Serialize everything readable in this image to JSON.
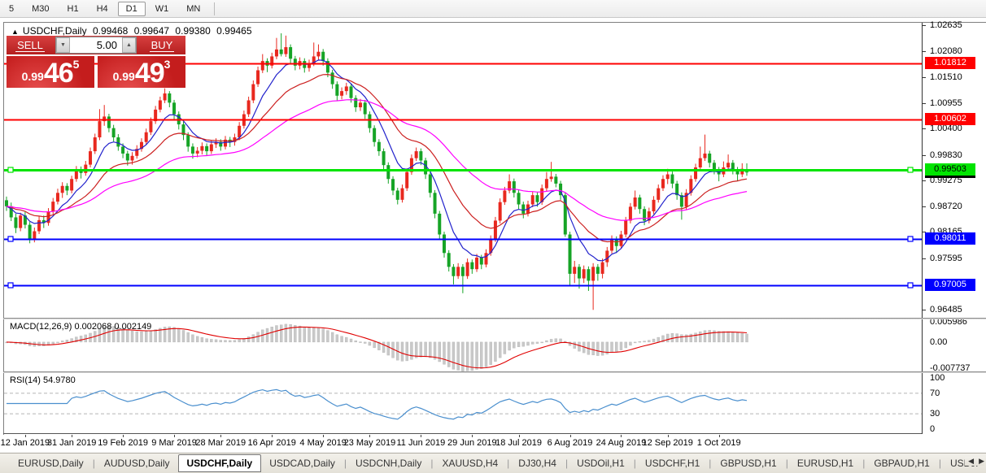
{
  "toolbar": {
    "timeframes": [
      "5",
      "M30",
      "H1",
      "H4",
      "D1",
      "W1",
      "MN"
    ],
    "active": "D1"
  },
  "chart_header": {
    "symbol": "USDCHF,Daily",
    "open": "0.99468",
    "high": "0.99647",
    "low": "0.99380",
    "close": "0.99465"
  },
  "trade_panel": {
    "sell_label": "SELL",
    "buy_label": "BUY",
    "volume": "5.00",
    "bid": {
      "prefix": "0.99",
      "big": "46",
      "sup": "5"
    },
    "ask": {
      "prefix": "0.99",
      "big": "49",
      "sup": "3"
    }
  },
  "chart_data": {
    "type": "candlestick",
    "symbol": "USDCHF",
    "timeframe": "Daily",
    "title": "USDCHF,Daily 0.99468 0.99647 0.99380 0.99465",
    "ylim": [
      0.96485,
      1.02635
    ],
    "price_axis_ticks": [
      {
        "v": 1.02635,
        "label": "1.02635"
      },
      {
        "v": 1.0208,
        "label": "1.02080"
      },
      {
        "v": 1.0151,
        "label": "1.01510"
      },
      {
        "v": 1.00955,
        "label": "1.00955"
      },
      {
        "v": 1.004,
        "label": "1.00400"
      },
      {
        "v": 0.9983,
        "label": "0.99830"
      },
      {
        "v": 0.99275,
        "label": "0.99275"
      },
      {
        "v": 0.9872,
        "label": "0.98720"
      },
      {
        "v": 0.98165,
        "label": "0.98165"
      },
      {
        "v": 0.97595,
        "label": "0.97595"
      },
      {
        "v": 0.96485,
        "label": "0.96485"
      }
    ],
    "date_ticks": {
      "labels": [
        "12 Jan 2019",
        "31 Jan 2019",
        "19 Feb 2019",
        "9 Mar 2019",
        "28 Mar 2019",
        "16 Apr 2019",
        "4 May 2019",
        "23 May 2019",
        "11 Jun 2019",
        "29 Jun 2019",
        "18 Jul 2019",
        "6 Aug 2019",
        "24 Aug 2019",
        "12 Sep 2019",
        "1 Oct 2019"
      ],
      "candle_indices": [
        4,
        14,
        25,
        36,
        46,
        57,
        68,
        78,
        89,
        100,
        110,
        121,
        132,
        142,
        153
      ]
    },
    "bull_color": "#e8281e",
    "bear_color": "#16a426",
    "candles": [
      [
        0.9885,
        0.9893,
        0.9862,
        0.9872
      ],
      [
        0.9872,
        0.988,
        0.984,
        0.9848
      ],
      [
        0.9848,
        0.9856,
        0.9814,
        0.9825
      ],
      [
        0.9825,
        0.9858,
        0.9818,
        0.9852
      ],
      [
        0.9852,
        0.986,
        0.9824,
        0.9832
      ],
      [
        0.9832,
        0.9838,
        0.9792,
        0.98
      ],
      [
        0.98,
        0.9826,
        0.9794,
        0.9818
      ],
      [
        0.9818,
        0.985,
        0.9812,
        0.9842
      ],
      [
        0.9842,
        0.9852,
        0.9825,
        0.9836
      ],
      [
        0.9836,
        0.9868,
        0.983,
        0.9861
      ],
      [
        0.9861,
        0.989,
        0.9855,
        0.9882
      ],
      [
        0.9882,
        0.991,
        0.9876,
        0.9901
      ],
      [
        0.9901,
        0.9924,
        0.989,
        0.9916
      ],
      [
        0.9916,
        0.9922,
        0.9896,
        0.9906
      ],
      [
        0.9906,
        0.9938,
        0.99,
        0.9931
      ],
      [
        0.9931,
        0.9959,
        0.9925,
        0.9951
      ],
      [
        0.9951,
        0.9958,
        0.9932,
        0.9944
      ],
      [
        0.9944,
        0.997,
        0.9938,
        0.9962
      ],
      [
        0.9962,
        0.9999,
        0.9956,
        0.9991
      ],
      [
        0.9991,
        1.0029,
        0.9985,
        1.0021
      ],
      [
        1.0021,
        1.0082,
        1.0015,
        1.0056
      ],
      [
        1.0056,
        1.0091,
        1.0046,
        1.0066
      ],
      [
        1.0066,
        1.0072,
        1.0032,
        1.0041
      ],
      [
        1.0041,
        1.0048,
        1.0012,
        1.0021
      ],
      [
        1.0021,
        1.0028,
        0.9992,
        1.0001
      ],
      [
        1.0001,
        1.0008,
        0.9976,
        0.9986
      ],
      [
        0.9986,
        0.9992,
        0.996,
        0.9971
      ],
      [
        0.9971,
        0.9989,
        0.9962,
        0.9981
      ],
      [
        0.9981,
        1.0004,
        0.9975,
        0.9996
      ],
      [
        0.9996,
        1.0019,
        0.999,
        1.0011
      ],
      [
        1.0011,
        1.004,
        1.0005,
        1.0032
      ],
      [
        1.0032,
        1.0064,
        1.0026,
        1.0056
      ],
      [
        1.0056,
        1.0089,
        1.005,
        1.0081
      ],
      [
        1.0081,
        1.0109,
        1.0075,
        1.0101
      ],
      [
        1.0101,
        1.0127,
        1.0095,
        1.0116
      ],
      [
        1.0116,
        1.0121,
        1.0086,
        1.0096
      ],
      [
        1.0096,
        1.0102,
        1.006,
        1.0071
      ],
      [
        1.0071,
        1.0077,
        1.0038,
        1.0049
      ],
      [
        1.0049,
        1.0055,
        1.0015,
        1.0026
      ],
      [
        1.0026,
        1.0032,
        0.999,
        1.0001
      ],
      [
        1.0001,
        1.0008,
        0.9975,
        0.9986
      ],
      [
        0.9986,
        1.0,
        0.9978,
        0.9992
      ],
      [
        0.9992,
        1.001,
        0.9984,
        1.0002
      ],
      [
        1.0002,
        1.0008,
        0.9982,
        0.9991
      ],
      [
        0.9991,
        1.0014,
        0.9985,
        1.0006
      ],
      [
        1.0006,
        1.0019,
        0.9998,
        1.0011
      ],
      [
        1.0011,
        1.0017,
        0.9992,
        1.0001
      ],
      [
        1.0001,
        1.0024,
        0.9995,
        1.0016
      ],
      [
        1.0016,
        1.0022,
        1.0,
        1.0011
      ],
      [
        1.0011,
        1.0029,
        1.0003,
        1.0021
      ],
      [
        1.0021,
        1.0054,
        1.0015,
        1.0046
      ],
      [
        1.0046,
        1.0079,
        1.004,
        1.0071
      ],
      [
        1.0071,
        1.0109,
        1.0065,
        1.0101
      ],
      [
        1.0101,
        1.0144,
        1.0095,
        1.0136
      ],
      [
        1.0136,
        1.0174,
        1.013,
        1.0166
      ],
      [
        1.0166,
        1.0201,
        1.016,
        1.0186
      ],
      [
        1.0186,
        1.0192,
        1.0162,
        1.0176
      ],
      [
        1.0176,
        1.0204,
        1.017,
        1.0196
      ],
      [
        1.0196,
        1.0236,
        1.019,
        1.0211
      ],
      [
        1.0211,
        1.0246,
        1.0196,
        1.0201
      ],
      [
        1.0201,
        1.0241,
        1.0195,
        1.0216
      ],
      [
        1.0216,
        1.0222,
        1.0181,
        1.0191
      ],
      [
        1.0191,
        1.0197,
        1.0166,
        1.0176
      ],
      [
        1.0176,
        1.0194,
        1.0168,
        1.0186
      ],
      [
        1.0186,
        1.0192,
        1.0161,
        1.0171
      ],
      [
        1.0171,
        1.0189,
        1.0163,
        1.0181
      ],
      [
        1.0181,
        1.0226,
        1.0175,
        1.0196
      ],
      [
        1.0196,
        1.0222,
        1.0188,
        1.0206
      ],
      [
        1.0206,
        1.0212,
        1.0176,
        1.0186
      ],
      [
        1.0186,
        1.0192,
        1.0151,
        1.0161
      ],
      [
        1.0161,
        1.0167,
        1.0126,
        1.0136
      ],
      [
        1.0136,
        1.0142,
        1.0101,
        1.0111
      ],
      [
        1.0111,
        1.0129,
        1.0103,
        1.0121
      ],
      [
        1.0121,
        1.0139,
        1.0113,
        1.0131
      ],
      [
        1.0131,
        1.0137,
        1.0096,
        1.0106
      ],
      [
        1.0106,
        1.0112,
        1.0076,
        1.0086
      ],
      [
        1.0086,
        1.0104,
        1.0078,
        1.0096
      ],
      [
        1.0096,
        1.0102,
        1.0061,
        1.0071
      ],
      [
        1.0071,
        1.0077,
        1.0031,
        1.0041
      ],
      [
        1.0041,
        1.0047,
        1.0001,
        1.0011
      ],
      [
        1.0011,
        1.0017,
        0.9981,
        0.9991
      ],
      [
        0.9991,
        0.9997,
        0.9951,
        0.9961
      ],
      [
        0.9961,
        0.9967,
        0.9921,
        0.9931
      ],
      [
        0.9931,
        0.9937,
        0.9896,
        0.9906
      ],
      [
        0.9906,
        0.9912,
        0.9876,
        0.9886
      ],
      [
        0.9886,
        0.9919,
        0.988,
        0.9911
      ],
      [
        0.9911,
        0.9954,
        0.9905,
        0.9946
      ],
      [
        0.9946,
        0.9984,
        0.994,
        0.9976
      ],
      [
        0.9976,
        0.9999,
        0.997,
        0.9991
      ],
      [
        0.9991,
        0.9997,
        0.9961,
        0.9971
      ],
      [
        0.9971,
        0.9977,
        0.9931,
        0.9941
      ],
      [
        0.9941,
        0.9947,
        0.9891,
        0.9901
      ],
      [
        0.9901,
        0.9907,
        0.9846,
        0.9856
      ],
      [
        0.9856,
        0.9862,
        0.9801,
        0.9811
      ],
      [
        0.9811,
        0.9817,
        0.9761,
        0.9771
      ],
      [
        0.9771,
        0.9777,
        0.9731,
        0.9741
      ],
      [
        0.9741,
        0.9747,
        0.9703,
        0.9721
      ],
      [
        0.9721,
        0.9749,
        0.9715,
        0.9741
      ],
      [
        0.9741,
        0.9747,
        0.9684,
        0.9721
      ],
      [
        0.9721,
        0.9759,
        0.9715,
        0.9751
      ],
      [
        0.9751,
        0.9757,
        0.9726,
        0.9736
      ],
      [
        0.9736,
        0.9769,
        0.973,
        0.9761
      ],
      [
        0.9761,
        0.9767,
        0.9736,
        0.9746
      ],
      [
        0.9746,
        0.9779,
        0.974,
        0.9771
      ],
      [
        0.9771,
        0.9809,
        0.9765,
        0.9801
      ],
      [
        0.9801,
        0.9849,
        0.9795,
        0.9841
      ],
      [
        0.9841,
        0.9889,
        0.9835,
        0.9881
      ],
      [
        0.9881,
        0.9914,
        0.9875,
        0.9906
      ],
      [
        0.9906,
        0.9941,
        0.99,
        0.9926
      ],
      [
        0.9926,
        0.9932,
        0.9891,
        0.9901
      ],
      [
        0.9901,
        0.9907,
        0.9866,
        0.9876
      ],
      [
        0.9876,
        0.9882,
        0.9846,
        0.9856
      ],
      [
        0.9856,
        0.9884,
        0.985,
        0.9876
      ],
      [
        0.9876,
        0.9904,
        0.987,
        0.9896
      ],
      [
        0.9896,
        0.9902,
        0.9871,
        0.9881
      ],
      [
        0.9881,
        0.9919,
        0.9875,
        0.9911
      ],
      [
        0.9911,
        0.9946,
        0.9905,
        0.9931
      ],
      [
        0.9931,
        0.9968,
        0.9925,
        0.9936
      ],
      [
        0.9936,
        0.9942,
        0.9913,
        0.9921
      ],
      [
        0.9921,
        0.9927,
        0.9886,
        0.9896
      ],
      [
        0.9896,
        0.9902,
        0.9806,
        0.9811
      ],
      [
        0.9811,
        0.9817,
        0.9701,
        0.9726
      ],
      [
        0.9726,
        0.9754,
        0.9706,
        0.9741
      ],
      [
        0.9741,
        0.9747,
        0.9694,
        0.9716
      ],
      [
        0.9716,
        0.9744,
        0.9706,
        0.9736
      ],
      [
        0.9736,
        0.9742,
        0.9689,
        0.9711
      ],
      [
        0.9711,
        0.9749,
        0.9648,
        0.9741
      ],
      [
        0.9741,
        0.9747,
        0.9711,
        0.9726
      ],
      [
        0.9726,
        0.9759,
        0.9716,
        0.9751
      ],
      [
        0.9751,
        0.9784,
        0.9741,
        0.9776
      ],
      [
        0.9776,
        0.9809,
        0.977,
        0.9801
      ],
      [
        0.9801,
        0.9807,
        0.9771,
        0.9786
      ],
      [
        0.9786,
        0.9819,
        0.978,
        0.9811
      ],
      [
        0.9811,
        0.9849,
        0.9805,
        0.9841
      ],
      [
        0.9841,
        0.9879,
        0.9835,
        0.9871
      ],
      [
        0.9871,
        0.9906,
        0.9865,
        0.9891
      ],
      [
        0.9891,
        0.9897,
        0.9856,
        0.9866
      ],
      [
        0.9866,
        0.9872,
        0.9831,
        0.9841
      ],
      [
        0.9841,
        0.9869,
        0.9835,
        0.9861
      ],
      [
        0.9861,
        0.9894,
        0.9855,
        0.9886
      ],
      [
        0.9886,
        0.9919,
        0.988,
        0.9911
      ],
      [
        0.9911,
        0.9939,
        0.9905,
        0.9931
      ],
      [
        0.9931,
        0.9953,
        0.992,
        0.9941
      ],
      [
        0.9941,
        0.9947,
        0.9911,
        0.9921
      ],
      [
        0.9921,
        0.9927,
        0.9886,
        0.9896
      ],
      [
        0.9896,
        0.9902,
        0.9843,
        0.9871
      ],
      [
        0.9871,
        0.9909,
        0.9865,
        0.9901
      ],
      [
        0.9901,
        0.9939,
        0.9895,
        0.9931
      ],
      [
        0.9931,
        0.9964,
        0.9925,
        0.9956
      ],
      [
        0.9956,
        1.0001,
        0.995,
        0.9976
      ],
      [
        0.9976,
        1.0027,
        0.997,
        0.9986
      ],
      [
        0.9986,
        0.9992,
        0.9956,
        0.9966
      ],
      [
        0.9966,
        0.9972,
        0.9941,
        0.9951
      ],
      [
        0.9951,
        0.9957,
        0.9926,
        0.9941
      ],
      [
        0.9941,
        0.9969,
        0.9935,
        0.9956
      ],
      [
        0.9956,
        0.9984,
        0.995,
        0.9966
      ],
      [
        0.9966,
        0.9972,
        0.9941,
        0.9951
      ],
      [
        0.9951,
        0.9957,
        0.9926,
        0.9941
      ],
      [
        0.9941,
        0.9965,
        0.9935,
        0.9953
      ],
      [
        0.99468,
        0.99647,
        0.9938,
        0.99465
      ]
    ],
    "overlays": [
      {
        "name": "ma-fast",
        "period": 8,
        "color": "#2222cc"
      },
      {
        "name": "ma-mid",
        "period": 20,
        "color": "#cc2020"
      },
      {
        "name": "ma-slow",
        "period": 45,
        "color": "#ff00ff"
      }
    ],
    "hlines": [
      {
        "value": 1.01812,
        "label": "1.01812",
        "color": "#ff0000",
        "width": 2,
        "markers": false,
        "text_color": "#fff"
      },
      {
        "value": 1.00602,
        "label": "1.00602",
        "color": "#ff0000",
        "width": 2,
        "markers": false,
        "text_color": "#fff"
      },
      {
        "value": 0.99503,
        "label": "0.99503",
        "color": "#00e400",
        "width": 3,
        "markers": true,
        "text_color": "#000"
      },
      {
        "value": 0.98011,
        "label": "0.98011",
        "color": "#0000ff",
        "width": 2,
        "markers": true,
        "text_color": "#fff"
      },
      {
        "value": 0.97005,
        "label": "0.97005",
        "color": "#0000ff",
        "width": 2,
        "markers": true,
        "text_color": "#fff"
      }
    ],
    "current_price": {
      "value": 0.99465,
      "label": "0.99465"
    },
    "macd": {
      "label": "MACD(12,26,9)",
      "display": "0.002068 0.002149",
      "fast": 12,
      "slow": 26,
      "signal": 9,
      "axis": [
        {
          "v": 0.005986,
          "label": "0.005986"
        },
        {
          "v": 0,
          "label": "0.00"
        },
        {
          "v": -0.007737,
          "label": "-0.007737"
        }
      ],
      "range": [
        -0.0088,
        0.0068
      ],
      "hist_color": "#c9c9c9",
      "signal_color": "#e00000"
    },
    "rsi": {
      "label": "RSI(14)",
      "display": "54.9780",
      "period": 14,
      "levels": [
        {
          "v": 100,
          "label": "100"
        },
        {
          "v": 70,
          "label": "70"
        },
        {
          "v": 30,
          "label": "30"
        },
        {
          "v": 0,
          "label": "0"
        }
      ],
      "dashed_levels": [
        70,
        30
      ],
      "color": "#4a8fce",
      "range": [
        0,
        100
      ]
    }
  },
  "tabs": {
    "items": [
      "EURUSD,Daily",
      "AUDUSD,Daily",
      "USDCHF,Daily",
      "USDCAD,Daily",
      "USDCNH,Daily",
      "XAUUSD,H4",
      "DJ30,H4",
      "USDOil,H1",
      "USDCHF,H1",
      "GBPUSD,H1",
      "EURUSD,H1",
      "GBPAUD,H1",
      "USDJP"
    ],
    "active_index": 2,
    "scroll_left_icon": "◀",
    "scroll_right_icon": "▶"
  }
}
